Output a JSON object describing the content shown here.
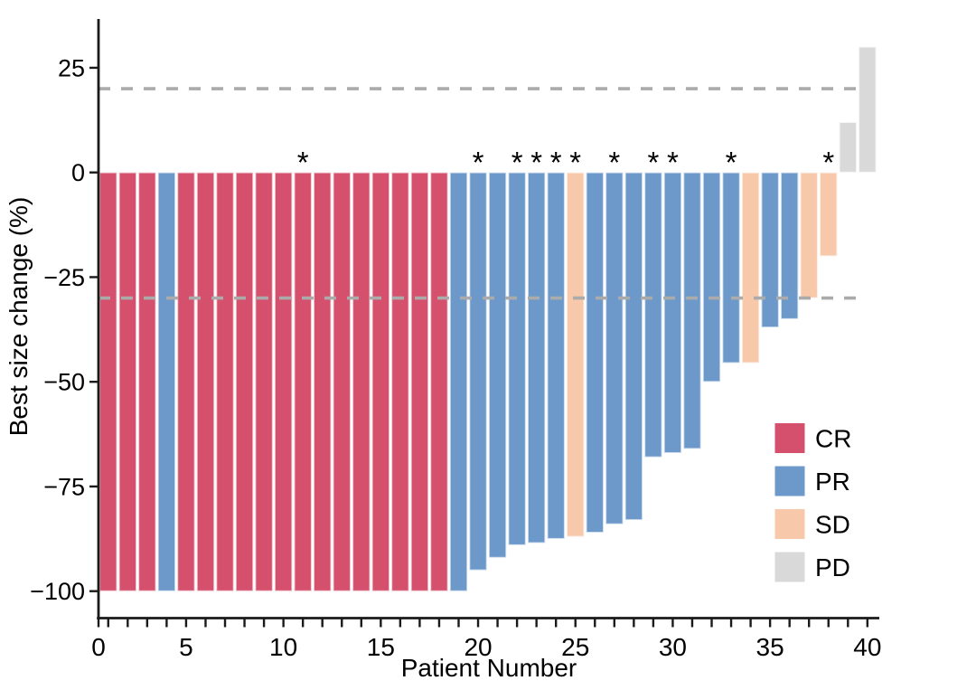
{
  "chart_data": {
    "type": "bar",
    "subtype": "waterfall",
    "title": "",
    "xlabel": "Patient Number",
    "ylabel": "Best size change (%)",
    "x_tick_values": [
      0,
      5,
      10,
      15,
      20,
      25,
      30,
      35,
      40
    ],
    "x_minor_tick_step": 1,
    "x_minor_tick_max": 40,
    "y_tick_values": [
      25,
      0,
      -25,
      -50,
      -75,
      -100
    ],
    "y_tick_labels": [
      "25",
      "0",
      "−25",
      "−50",
      "−75",
      "−100"
    ],
    "xlim": [
      0,
      40.6
    ],
    "ylim": [
      -100,
      36.5
    ],
    "grid": "off",
    "reference_lines": [
      {
        "y": 20,
        "style": "dashed",
        "color": "#ABABAB"
      },
      {
        "y": -30,
        "style": "dashed",
        "color": "#ABABAB"
      }
    ],
    "annotation_symbol": "*",
    "legend": {
      "position": "right-middle",
      "entries": [
        {
          "label": "CR",
          "color": "#D5506C"
        },
        {
          "label": "PR",
          "color": "#6C99CA"
        },
        {
          "label": "SD",
          "color": "#F8C8AA"
        },
        {
          "label": "PD",
          "color": "#D9D9D9"
        }
      ]
    },
    "series": [
      {
        "name": "Best size change",
        "points": [
          {
            "patient": 1,
            "value": -100,
            "response": "CR",
            "annotated": false
          },
          {
            "patient": 2,
            "value": -100,
            "response": "CR",
            "annotated": false
          },
          {
            "patient": 3,
            "value": -100,
            "response": "CR",
            "annotated": false
          },
          {
            "patient": 4,
            "value": -100,
            "response": "PR",
            "annotated": false
          },
          {
            "patient": 5,
            "value": -100,
            "response": "CR",
            "annotated": false
          },
          {
            "patient": 6,
            "value": -100,
            "response": "CR",
            "annotated": false
          },
          {
            "patient": 7,
            "value": -100,
            "response": "CR",
            "annotated": false
          },
          {
            "patient": 8,
            "value": -100,
            "response": "CR",
            "annotated": false
          },
          {
            "patient": 9,
            "value": -100,
            "response": "CR",
            "annotated": false
          },
          {
            "patient": 10,
            "value": -100,
            "response": "CR",
            "annotated": false
          },
          {
            "patient": 11,
            "value": -100,
            "response": "CR",
            "annotated": true
          },
          {
            "patient": 12,
            "value": -100,
            "response": "CR",
            "annotated": false
          },
          {
            "patient": 13,
            "value": -100,
            "response": "CR",
            "annotated": false
          },
          {
            "patient": 14,
            "value": -100,
            "response": "CR",
            "annotated": false
          },
          {
            "patient": 15,
            "value": -100,
            "response": "CR",
            "annotated": false
          },
          {
            "patient": 16,
            "value": -100,
            "response": "CR",
            "annotated": false
          },
          {
            "patient": 17,
            "value": -100,
            "response": "CR",
            "annotated": false
          },
          {
            "patient": 18,
            "value": -100,
            "response": "CR",
            "annotated": false
          },
          {
            "patient": 19,
            "value": -100,
            "response": "PR",
            "annotated": false
          },
          {
            "patient": 20,
            "value": -95,
            "response": "PR",
            "annotated": true
          },
          {
            "patient": 21,
            "value": -92,
            "response": "PR",
            "annotated": false
          },
          {
            "patient": 22,
            "value": -89,
            "response": "PR",
            "annotated": true
          },
          {
            "patient": 23,
            "value": -88.5,
            "response": "PR",
            "annotated": true
          },
          {
            "patient": 24,
            "value": -87.5,
            "response": "PR",
            "annotated": true
          },
          {
            "patient": 25,
            "value": -87,
            "response": "SD",
            "annotated": true
          },
          {
            "patient": 26,
            "value": -86,
            "response": "PR",
            "annotated": false
          },
          {
            "patient": 27,
            "value": -84,
            "response": "PR",
            "annotated": true
          },
          {
            "patient": 28,
            "value": -83,
            "response": "PR",
            "annotated": false
          },
          {
            "patient": 29,
            "value": -68,
            "response": "PR",
            "annotated": true
          },
          {
            "patient": 30,
            "value": -67,
            "response": "PR",
            "annotated": true
          },
          {
            "patient": 31,
            "value": -66,
            "response": "PR",
            "annotated": false
          },
          {
            "patient": 32,
            "value": -50,
            "response": "PR",
            "annotated": false
          },
          {
            "patient": 33,
            "value": -45.5,
            "response": "PR",
            "annotated": true
          },
          {
            "patient": 34,
            "value": -45.5,
            "response": "SD",
            "annotated": false
          },
          {
            "patient": 35,
            "value": -37,
            "response": "PR",
            "annotated": false
          },
          {
            "patient": 36,
            "value": -35,
            "response": "PR",
            "annotated": false
          },
          {
            "patient": 37,
            "value": -30,
            "response": "SD",
            "annotated": false
          },
          {
            "patient": 38,
            "value": -20,
            "response": "SD",
            "annotated": true
          },
          {
            "patient": 39,
            "value": 12,
            "response": "PD",
            "annotated": false
          },
          {
            "patient": 40,
            "value": 30,
            "response": "PD",
            "annotated": false
          }
        ]
      }
    ]
  }
}
